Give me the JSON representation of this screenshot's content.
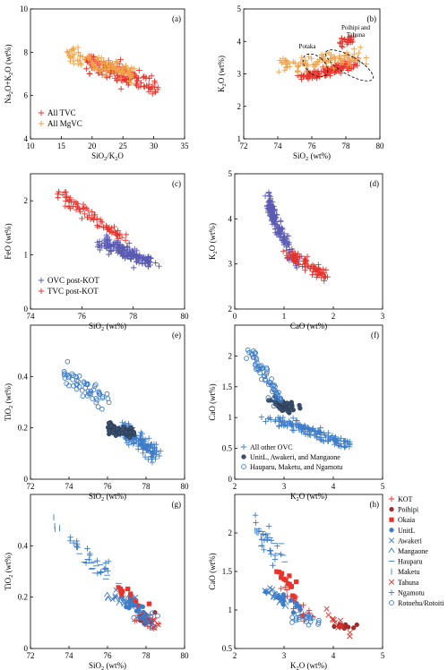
{
  "chart_data": [
    {
      "id": "a",
      "panel_label": "(a)",
      "type": "scatter",
      "xlabel": "SiO2/K2O",
      "ylabel": "Na2O+K2O (wt%)",
      "xlim": [
        10,
        35
      ],
      "ylim": [
        4,
        10
      ],
      "xticks": [
        10,
        15,
        20,
        25,
        30,
        35
      ],
      "yticks": [
        4,
        6,
        8,
        10
      ],
      "legend": {
        "position": "bottom-left",
        "entries": [
          "All TVC",
          "All MgVC"
        ]
      },
      "series": [
        {
          "name": "All TVC",
          "marker": "plus",
          "color": "#e8322b",
          "cloud": [
            {
              "cx": [
                19,
                30.5
              ],
              "cy": [
                7.6,
                6.3
              ],
              "sx": 0.55,
              "sy": 0.35,
              "n": 160
            }
          ]
        },
        {
          "name": "All MgVC",
          "marker": "plus",
          "color": "#f2a24a",
          "cloud": [
            {
              "cx": [
                16,
                27
              ],
              "cy": [
                7.9,
                7.0
              ],
              "sx": 0.55,
              "sy": 0.3,
              "n": 120
            }
          ]
        }
      ]
    },
    {
      "id": "b",
      "panel_label": "(b)",
      "type": "scatter",
      "xlabel": "SiO2 (wt%)",
      "ylabel": "K2O (wt%)",
      "xlim": [
        72,
        80
      ],
      "ylim": [
        1,
        5
      ],
      "xticks": [
        72,
        74,
        76,
        78,
        80
      ],
      "yticks": [
        1,
        2,
        3,
        4,
        5
      ],
      "annotations": [
        "Potaka",
        "Poihipi and",
        "Tahuna"
      ],
      "series": [
        {
          "name": "All TVC",
          "marker": "plus",
          "color": "#e8322b",
          "cloud": [
            {
              "cx": [
                75.5,
                78.5
              ],
              "cy": [
                2.9,
                3.3
              ],
              "sx": 0.35,
              "sy": 0.12,
              "n": 120
            },
            {
              "cx": [
                77.6,
                78.4
              ],
              "cy": [
                3.9,
                4.1
              ],
              "sx": 0.15,
              "sy": 0.15,
              "n": 25
            }
          ]
        },
        {
          "name": "All MgVC",
          "marker": "plus",
          "color": "#f2a24a",
          "cloud": [
            {
              "cx": [
                74,
                79
              ],
              "cy": [
                3.3,
                3.5
              ],
              "sx": 0.45,
              "sy": 0.2,
              "n": 100
            }
          ]
        }
      ]
    },
    {
      "id": "c",
      "panel_label": "(c)",
      "type": "scatter",
      "xlabel": "SiO2 (wt%)",
      "ylabel": "FeO (wt%)",
      "xlim": [
        74,
        80
      ],
      "ylim": [
        0,
        2.5
      ],
      "xticks": [
        74,
        76,
        78,
        80
      ],
      "yticks": [
        0,
        1,
        2
      ],
      "legend": {
        "position": "bottom-left",
        "entries": [
          "OVC post-KOT",
          "TVC post-KOT"
        ]
      },
      "series": [
        {
          "name": "OVC post-KOT",
          "marker": "plus",
          "color": "#5a5ab4",
          "cloud": [
            {
              "cx": [
                76.8,
                78.6
              ],
              "cy": [
                1.25,
                0.85
              ],
              "sx": 0.3,
              "sy": 0.1,
              "n": 170
            }
          ]
        },
        {
          "name": "TVC post-KOT",
          "marker": "plus",
          "color": "#e8322b",
          "cloud": [
            {
              "cx": [
                75.1,
                77.6
              ],
              "cy": [
                2.15,
                1.3
              ],
              "sx": 0.18,
              "sy": 0.1,
              "n": 85
            }
          ]
        }
      ]
    },
    {
      "id": "d",
      "panel_label": "(d)",
      "type": "scatter",
      "xlabel": "CaO (wt%)",
      "ylabel": "K2O (wt%)",
      "xlim": [
        0,
        3
      ],
      "ylim": [
        2,
        5
      ],
      "xticks": [
        0,
        1,
        2,
        3
      ],
      "yticks": [
        2,
        3,
        4,
        5
      ],
      "series": [
        {
          "name": "OVC post-KOT",
          "marker": "plus",
          "color": "#5a5ab4",
          "cloud": [
            {
              "cx": [
                0.68,
                0.82
              ],
              "cy": [
                4.5,
                3.9
              ],
              "sx": 0.05,
              "sy": 0.12,
              "n": 80
            },
            {
              "cx": [
                0.82,
                1.25
              ],
              "cy": [
                3.9,
                3.0
              ],
              "sx": 0.08,
              "sy": 0.1,
              "n": 90
            }
          ]
        },
        {
          "name": "TVC post-KOT",
          "marker": "plus",
          "color": "#e8322b",
          "cloud": [
            {
              "cx": [
                1.1,
                1.85
              ],
              "cy": [
                3.2,
                2.75
              ],
              "sx": 0.1,
              "sy": 0.1,
              "n": 85
            }
          ]
        }
      ]
    },
    {
      "id": "e",
      "panel_label": "(e)",
      "type": "scatter",
      "xlabel": "SiO2 (wt%)",
      "ylabel": "TiO2 (wt%)",
      "xlim": [
        72,
        80
      ],
      "ylim": [
        0,
        0.6
      ],
      "xticks": [
        72,
        74,
        76,
        78,
        80
      ],
      "yticks": [
        0,
        0.2,
        0.4
      ],
      "series": [
        {
          "name": "All other OVC",
          "marker": "plus",
          "color": "#3d7cc9",
          "cloud": [
            {
              "cx": [
                76.8,
                78.4
              ],
              "cy": [
                0.2,
                0.1
              ],
              "sx": 0.3,
              "sy": 0.025,
              "n": 140
            }
          ]
        },
        {
          "name": "UnitL, Awakeri, and Mangaone",
          "marker": "filled-circle",
          "color": "#3a4f6e",
          "cloud": [
            {
              "cx": [
                76.0,
                77.3
              ],
              "cy": [
                0.2,
                0.18
              ],
              "sx": 0.22,
              "sy": 0.015,
              "n": 55
            }
          ]
        },
        {
          "name": "Hauparu, Maketu, and Ngamotu",
          "marker": "open-circle",
          "color": "#3d7cc9",
          "cloud": [
            {
              "cx": [
                73.5,
                76.0
              ],
              "cy": [
                0.43,
                0.3
              ],
              "sx": 0.35,
              "sy": 0.03,
              "n": 55
            }
          ]
        }
      ]
    },
    {
      "id": "f",
      "panel_label": "(f)",
      "type": "scatter",
      "xlabel": "K2O (wt%)",
      "ylabel": "CaO (wt%)",
      "xlim": [
        2,
        5
      ],
      "ylim": [
        0,
        2.5
      ],
      "xticks": [
        2,
        3,
        4,
        5
      ],
      "yticks": [
        0,
        0.5,
        1.0,
        1.5,
        2.0
      ],
      "legend": {
        "position": "bottom-left",
        "entries": [
          "All other OVC",
          "UnitL, Awakeri, and Mangaone",
          "Hauparu, Maketu, and Ngamotu"
        ]
      },
      "series": [
        {
          "name": "All other OVC",
          "marker": "plus",
          "color": "#3d7cc9",
          "cloud": [
            {
              "cx": [
                2.8,
                4.3
              ],
              "cy": [
                1.0,
                0.55
              ],
              "sx": 0.2,
              "sy": 0.05,
              "n": 140
            }
          ]
        },
        {
          "name": "UnitL, Awakeri, and Mangaone",
          "marker": "filled-circle",
          "color": "#3a4f6e",
          "cloud": [
            {
              "cx": [
                2.8,
                3.2
              ],
              "cy": [
                1.25,
                1.15
              ],
              "sx": 0.1,
              "sy": 0.07,
              "n": 55
            }
          ]
        },
        {
          "name": "Hauparu, Maketu, and Ngamotu",
          "marker": "open-circle",
          "color": "#3d7cc9",
          "cloud": [
            {
              "cx": [
                2.3,
                2.9
              ],
              "cy": [
                2.1,
                1.3
              ],
              "sx": 0.09,
              "sy": 0.1,
              "n": 60
            }
          ]
        }
      ]
    },
    {
      "id": "g",
      "panel_label": "(g)",
      "type": "scatter",
      "xlabel": "SiO2 (wt%)",
      "ylabel": "TiO2 (wt%)",
      "xlim": [
        72,
        80
      ],
      "ylim": [
        0,
        0.6
      ],
      "xticks": [
        72,
        74,
        76,
        78,
        80
      ],
      "yticks": [
        0,
        0.2,
        0.4
      ],
      "series": [
        {
          "name": "KOT",
          "marker": "plus",
          "color": "#e8322b",
          "cloud": [
            {
              "cx": [
                77.6,
                78.4
              ],
              "cy": [
                0.12,
                0.1
              ],
              "sx": 0.3,
              "sy": 0.02,
              "n": 20
            }
          ]
        },
        {
          "name": "Poihipi",
          "marker": "filled-circle",
          "color": "#a12b2b",
          "cloud": [
            {
              "cx": [
                77.6,
                78.3
              ],
              "cy": [
                0.12,
                0.1
              ],
              "sx": 0.2,
              "sy": 0.02,
              "n": 12
            }
          ]
        },
        {
          "name": "Okaia",
          "marker": "filled-square",
          "color": "#e8322b",
          "cloud": [
            {
              "cx": [
                76.5,
                78.0
              ],
              "cy": [
                0.24,
                0.16
              ],
              "sx": 0.35,
              "sy": 0.02,
              "n": 14
            }
          ]
        },
        {
          "name": "UnitL",
          "marker": "filled-circle",
          "color": "#3d7cc9",
          "cloud": [
            {
              "cx": [
                77.0,
                77.8
              ],
              "cy": [
                0.17,
                0.14
              ],
              "sx": 0.25,
              "sy": 0.02,
              "n": 14
            }
          ]
        },
        {
          "name": "Awakeri",
          "marker": "x",
          "color": "#3d7cc9",
          "cloud": [
            {
              "cx": [
                76.2,
                77.4
              ],
              "cy": [
                0.21,
                0.18
              ],
              "sx": 0.22,
              "sy": 0.02,
              "n": 14
            }
          ]
        },
        {
          "name": "Mangaone",
          "marker": "triangle",
          "color": "#3d7cc9",
          "cloud": [
            {
              "cx": [
                76.0,
                77.2
              ],
              "cy": [
                0.2,
                0.18
              ],
              "sx": 0.2,
              "sy": 0.02,
              "n": 12
            }
          ]
        },
        {
          "name": "Hauparu",
          "marker": "hline",
          "color": "#3d7cc9",
          "cloud": [
            {
              "cx": [
                74.5,
                76.5
              ],
              "cy": [
                0.38,
                0.24
              ],
              "sx": 0.3,
              "sy": 0.03,
              "n": 16
            }
          ]
        },
        {
          "name": "Maketu",
          "marker": "vline",
          "color": "#3d7cc9",
          "cloud": [
            {
              "cx": [
                73.0,
                73.5
              ],
              "cy": [
                0.52,
                0.46
              ],
              "sx": 0.12,
              "sy": 0.02,
              "n": 4
            }
          ]
        },
        {
          "name": "Tahuna",
          "marker": "x",
          "color": "#e8322b",
          "cloud": [
            {
              "cx": [
                77.8,
                78.6
              ],
              "cy": [
                0.1,
                0.1
              ],
              "sx": 0.25,
              "sy": 0.02,
              "n": 12
            }
          ]
        },
        {
          "name": "Ngamotu",
          "marker": "plus",
          "color": "#3d7cc9",
          "cloud": [
            {
              "cx": [
                74.0,
                76.0
              ],
              "cy": [
                0.42,
                0.3
              ],
              "sx": 0.3,
              "sy": 0.03,
              "n": 22
            }
          ]
        },
        {
          "name": "Rotoehu/Rotoiti",
          "marker": "open-circle",
          "color": "#3d7cc9",
          "cloud": [
            {
              "cx": [
                77.4,
                78.4
              ],
              "cy": [
                0.14,
                0.1
              ],
              "sx": 0.25,
              "sy": 0.02,
              "n": 22
            }
          ]
        }
      ]
    },
    {
      "id": "h",
      "panel_label": "(h)",
      "type": "scatter",
      "xlabel": "K2O (wt%)",
      "ylabel": "CaO (wt%)",
      "xlim": [
        2,
        5
      ],
      "ylim": [
        0.5,
        2.5
      ],
      "xticks": [
        2,
        3,
        4,
        5
      ],
      "yticks": [
        0.5,
        1.0,
        1.5,
        2.0
      ],
      "legend": {
        "position": "top-right",
        "entries": [
          "KOT",
          "Poihipi",
          "Okaia",
          "UnitL",
          "Awakeri",
          "Mangaone",
          "Hauparu",
          "Maketu",
          "Tahuna",
          "Ngamotu",
          "Rotoehu/Rotoiti"
        ]
      },
      "series": [
        {
          "name": "KOT",
          "marker": "plus",
          "color": "#e8322b",
          "cloud": [
            {
              "cx": [
                3.0,
                3.5
              ],
              "cy": [
                1.3,
                0.9
              ],
              "sx": 0.12,
              "sy": 0.08,
              "n": 20
            }
          ]
        },
        {
          "name": "Poihipi",
          "marker": "filled-circle",
          "color": "#a12b2b",
          "cloud": [
            {
              "cx": [
                4.0,
                4.4
              ],
              "cy": [
                0.8,
                0.78
              ],
              "sx": 0.12,
              "sy": 0.04,
              "n": 12
            }
          ]
        },
        {
          "name": "Okaia",
          "marker": "filled-square",
          "color": "#e8322b",
          "cloud": [
            {
              "cx": [
                2.9,
                3.2
              ],
              "cy": [
                1.55,
                1.2
              ],
              "sx": 0.08,
              "sy": 0.1,
              "n": 14
            }
          ]
        },
        {
          "name": "UnitL",
          "marker": "filled-circle",
          "color": "#3d7cc9",
          "cloud": [
            {
              "cx": [
                2.8,
                3.4
              ],
              "cy": [
                1.2,
                1.0
              ],
              "sx": 0.12,
              "sy": 0.06,
              "n": 14
            }
          ]
        },
        {
          "name": "Awakeri",
          "marker": "x",
          "color": "#3d7cc9",
          "cloud": [
            {
              "cx": [
                2.6,
                3.0
              ],
              "cy": [
                1.25,
                1.15
              ],
              "sx": 0.1,
              "sy": 0.05,
              "n": 14
            }
          ]
        },
        {
          "name": "Mangaone",
          "marker": "triangle",
          "color": "#3d7cc9",
          "cloud": [
            {
              "cx": [
                2.7,
                3.1
              ],
              "cy": [
                1.2,
                1.1
              ],
              "sx": 0.1,
              "sy": 0.05,
              "n": 12
            }
          ]
        },
        {
          "name": "Hauparu",
          "marker": "hline",
          "color": "#3d7cc9",
          "cloud": [
            {
              "cx": [
                2.5,
                3.0
              ],
              "cy": [
                2.05,
                1.6
              ],
              "sx": 0.12,
              "sy": 0.08,
              "n": 16
            }
          ]
        },
        {
          "name": "Maketu",
          "marker": "vline",
          "color": "#3d7cc9",
          "cloud": [
            {
              "cx": [
                2.3,
                2.6
              ],
              "cy": [
                2.1,
                1.95
              ],
              "sx": 0.06,
              "sy": 0.05,
              "n": 5
            }
          ]
        },
        {
          "name": "Tahuna",
          "marker": "x",
          "color": "#e8322b",
          "cloud": [
            {
              "cx": [
                3.8,
                4.3
              ],
              "cy": [
                0.95,
                0.75
              ],
              "sx": 0.12,
              "sy": 0.08,
              "n": 12
            }
          ]
        },
        {
          "name": "Ngamotu",
          "marker": "plus",
          "color": "#3d7cc9",
          "cloud": [
            {
              "cx": [
                2.4,
                2.9
              ],
              "cy": [
                2.2,
                1.6
              ],
              "sx": 0.1,
              "sy": 0.1,
              "n": 22
            }
          ]
        },
        {
          "name": "Rotoehu/Rotoiti",
          "marker": "open-circle",
          "color": "#3d7cc9",
          "cloud": [
            {
              "cx": [
                3.2,
                3.7
              ],
              "cy": [
                0.92,
                0.85
              ],
              "sx": 0.15,
              "sy": 0.04,
              "n": 22
            }
          ]
        }
      ]
    }
  ]
}
